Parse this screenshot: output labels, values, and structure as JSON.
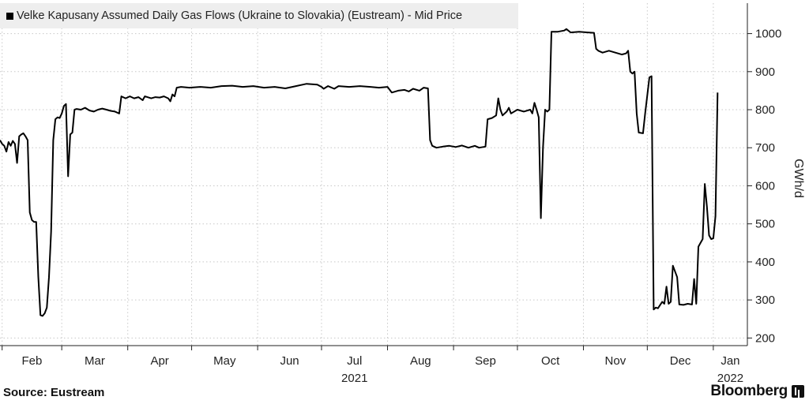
{
  "legend": {
    "label": "Velke Kapusany Assumed Daily Gas Flows (Ukraine to Slovakia) (Eustream) - Mid Price"
  },
  "footer": {
    "source": "Source: Eustream",
    "brand": "Bloomberg"
  },
  "chart_data": {
    "type": "line",
    "title": "Velke Kapusany Assumed Daily Gas Flows (Ukraine to Slovakia) (Eustream) - Mid Price",
    "ylabel": "GWh/d",
    "ylim": [
      180,
      1080
    ],
    "yticks": [
      200,
      300,
      400,
      500,
      600,
      700,
      800,
      900,
      1000
    ],
    "xlim": [
      "2021-01-31",
      "2022-01-17"
    ],
    "month_ticks": [
      "2021-02-01",
      "2021-03-01",
      "2021-04-01",
      "2021-05-01",
      "2021-06-01",
      "2021-07-01",
      "2021-08-01",
      "2021-09-01",
      "2021-10-01",
      "2021-11-01",
      "2021-12-01",
      "2022-01-01"
    ],
    "month_labels": [
      "Feb",
      "Mar",
      "Apr",
      "May",
      "Jun",
      "Jul",
      "Aug",
      "Sep",
      "Oct",
      "Nov",
      "Dec",
      "Jan"
    ],
    "year_labels": [
      {
        "date": "2021-07-01",
        "label": "2021"
      },
      {
        "date": "2022-01-01",
        "label": "2022"
      }
    ],
    "grid": true,
    "series": [
      {
        "points": [
          [
            "2021-01-31",
            720
          ],
          [
            "2021-02-01",
            710
          ],
          [
            "2021-02-02",
            705
          ],
          [
            "2021-02-03",
            690
          ],
          [
            "2021-02-04",
            715
          ],
          [
            "2021-02-05",
            705
          ],
          [
            "2021-02-06",
            718
          ],
          [
            "2021-02-07",
            710
          ],
          [
            "2021-02-08",
            660
          ],
          [
            "2021-02-09",
            730
          ],
          [
            "2021-02-10",
            735
          ],
          [
            "2021-02-11",
            738
          ],
          [
            "2021-02-12",
            730
          ],
          [
            "2021-02-13",
            720
          ],
          [
            "2021-02-14",
            530
          ],
          [
            "2021-02-15",
            510
          ],
          [
            "2021-02-16",
            505
          ],
          [
            "2021-02-17",
            505
          ],
          [
            "2021-02-18",
            360
          ],
          [
            "2021-02-19",
            260
          ],
          [
            "2021-02-20",
            258
          ],
          [
            "2021-02-21",
            265
          ],
          [
            "2021-02-22",
            280
          ],
          [
            "2021-02-23",
            360
          ],
          [
            "2021-02-24",
            480
          ],
          [
            "2021-02-25",
            720
          ],
          [
            "2021-02-26",
            775
          ],
          [
            "2021-02-27",
            780
          ],
          [
            "2021-02-28",
            778
          ],
          [
            "2021-03-01",
            790
          ],
          [
            "2021-03-02",
            810
          ],
          [
            "2021-03-03",
            815
          ],
          [
            "2021-03-04",
            625
          ],
          [
            "2021-03-05",
            735
          ],
          [
            "2021-03-06",
            740
          ],
          [
            "2021-03-07",
            800
          ],
          [
            "2021-03-08",
            802
          ],
          [
            "2021-03-10",
            800
          ],
          [
            "2021-03-12",
            805
          ],
          [
            "2021-03-14",
            798
          ],
          [
            "2021-03-16",
            795
          ],
          [
            "2021-03-18",
            800
          ],
          [
            "2021-03-20",
            803
          ],
          [
            "2021-03-22",
            800
          ],
          [
            "2021-03-24",
            797
          ],
          [
            "2021-03-26",
            795
          ],
          [
            "2021-03-28",
            790
          ],
          [
            "2021-03-29",
            835
          ],
          [
            "2021-03-31",
            830
          ],
          [
            "2021-04-02",
            835
          ],
          [
            "2021-04-04",
            830
          ],
          [
            "2021-04-06",
            833
          ],
          [
            "2021-04-08",
            825
          ],
          [
            "2021-04-09",
            835
          ],
          [
            "2021-04-12",
            830
          ],
          [
            "2021-04-14",
            833
          ],
          [
            "2021-04-16",
            832
          ],
          [
            "2021-04-18",
            835
          ],
          [
            "2021-04-20",
            830
          ],
          [
            "2021-04-21",
            822
          ],
          [
            "2021-04-22",
            840
          ],
          [
            "2021-04-23",
            835
          ],
          [
            "2021-04-24",
            858
          ],
          [
            "2021-04-26",
            860
          ],
          [
            "2021-04-30",
            858
          ],
          [
            "2021-05-05",
            860
          ],
          [
            "2021-05-10",
            858
          ],
          [
            "2021-05-15",
            862
          ],
          [
            "2021-05-20",
            863
          ],
          [
            "2021-05-25",
            860
          ],
          [
            "2021-05-30",
            862
          ],
          [
            "2021-06-04",
            858
          ],
          [
            "2021-06-09",
            860
          ],
          [
            "2021-06-14",
            856
          ],
          [
            "2021-06-19",
            862
          ],
          [
            "2021-06-24",
            868
          ],
          [
            "2021-06-29",
            866
          ],
          [
            "2021-07-01",
            860
          ],
          [
            "2021-07-02",
            855
          ],
          [
            "2021-07-04",
            862
          ],
          [
            "2021-07-07",
            855
          ],
          [
            "2021-07-09",
            862
          ],
          [
            "2021-07-14",
            860
          ],
          [
            "2021-07-19",
            862
          ],
          [
            "2021-07-24",
            860
          ],
          [
            "2021-07-28",
            858
          ],
          [
            "2021-08-01",
            860
          ],
          [
            "2021-08-03",
            845
          ],
          [
            "2021-08-06",
            850
          ],
          [
            "2021-08-09",
            852
          ],
          [
            "2021-08-11",
            848
          ],
          [
            "2021-08-13",
            855
          ],
          [
            "2021-08-16",
            850
          ],
          [
            "2021-08-18",
            858
          ],
          [
            "2021-08-20",
            856
          ],
          [
            "2021-08-21",
            720
          ],
          [
            "2021-08-22",
            705
          ],
          [
            "2021-08-24",
            700
          ],
          [
            "2021-08-27",
            703
          ],
          [
            "2021-08-30",
            705
          ],
          [
            "2021-09-02",
            702
          ],
          [
            "2021-09-05",
            706
          ],
          [
            "2021-09-08",
            700
          ],
          [
            "2021-09-11",
            705
          ],
          [
            "2021-09-13",
            700
          ],
          [
            "2021-09-16",
            703
          ],
          [
            "2021-09-17",
            775
          ],
          [
            "2021-09-19",
            778
          ],
          [
            "2021-09-21",
            785
          ],
          [
            "2021-09-22",
            830
          ],
          [
            "2021-09-23",
            800
          ],
          [
            "2021-09-24",
            785
          ],
          [
            "2021-09-26",
            795
          ],
          [
            "2021-09-27",
            805
          ],
          [
            "2021-09-28",
            790
          ],
          [
            "2021-10-01",
            800
          ],
          [
            "2021-10-04",
            795
          ],
          [
            "2021-10-07",
            800
          ],
          [
            "2021-10-08",
            790
          ],
          [
            "2021-10-09",
            818
          ],
          [
            "2021-10-10",
            800
          ],
          [
            "2021-10-11",
            780
          ],
          [
            "2021-10-12",
            515
          ],
          [
            "2021-10-13",
            700
          ],
          [
            "2021-10-14",
            800
          ],
          [
            "2021-10-15",
            795
          ],
          [
            "2021-10-16",
            800
          ],
          [
            "2021-10-17",
            1005
          ],
          [
            "2021-10-20",
            1005
          ],
          [
            "2021-10-23",
            1008
          ],
          [
            "2021-10-24",
            1012
          ],
          [
            "2021-10-26",
            1003
          ],
          [
            "2021-10-30",
            1005
          ],
          [
            "2021-11-03",
            1003
          ],
          [
            "2021-11-06",
            1002
          ],
          [
            "2021-11-07",
            960
          ],
          [
            "2021-11-08",
            955
          ],
          [
            "2021-11-10",
            950
          ],
          [
            "2021-11-13",
            955
          ],
          [
            "2021-11-16",
            950
          ],
          [
            "2021-11-19",
            945
          ],
          [
            "2021-11-21",
            948
          ],
          [
            "2021-11-22",
            955
          ],
          [
            "2021-11-23",
            900
          ],
          [
            "2021-11-24",
            895
          ],
          [
            "2021-11-25",
            900
          ],
          [
            "2021-11-26",
            790
          ],
          [
            "2021-11-27",
            740
          ],
          [
            "2021-11-29",
            738
          ],
          [
            "2021-11-30",
            790
          ],
          [
            "2021-12-02",
            885
          ],
          [
            "2021-12-03",
            888
          ],
          [
            "2021-12-04",
            275
          ],
          [
            "2021-12-05",
            280
          ],
          [
            "2021-12-06",
            278
          ],
          [
            "2021-12-08",
            295
          ],
          [
            "2021-12-09",
            290
          ],
          [
            "2021-12-10",
            335
          ],
          [
            "2021-12-11",
            290
          ],
          [
            "2021-12-12",
            295
          ],
          [
            "2021-12-13",
            390
          ],
          [
            "2021-12-15",
            360
          ],
          [
            "2021-12-16",
            288
          ],
          [
            "2021-12-18",
            287
          ],
          [
            "2021-12-20",
            290
          ],
          [
            "2021-12-22",
            288
          ],
          [
            "2021-12-23",
            355
          ],
          [
            "2021-12-24",
            290
          ],
          [
            "2021-12-25",
            440
          ],
          [
            "2021-12-26",
            450
          ],
          [
            "2021-12-27",
            460
          ],
          [
            "2021-12-28",
            605
          ],
          [
            "2021-12-29",
            545
          ],
          [
            "2021-12-30",
            470
          ],
          [
            "2021-12-31",
            460
          ],
          [
            "2022-01-01",
            462
          ],
          [
            "2022-01-02",
            520
          ],
          [
            "2022-01-03",
            845
          ]
        ]
      }
    ]
  }
}
